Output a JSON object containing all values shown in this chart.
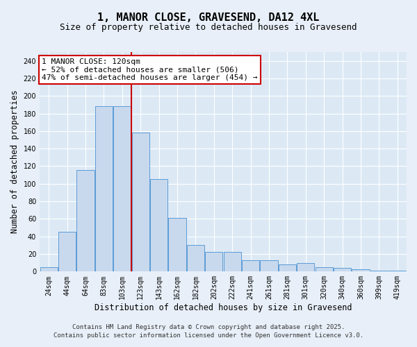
{
  "title": "1, MANOR CLOSE, GRAVESEND, DA12 4XL",
  "subtitle": "Size of property relative to detached houses in Gravesend",
  "xlabel": "Distribution of detached houses by size in Gravesend",
  "ylabel": "Number of detached properties",
  "categories": [
    "24sqm",
    "44sqm",
    "64sqm",
    "83sqm",
    "103sqm",
    "123sqm",
    "143sqm",
    "162sqm",
    "182sqm",
    "202sqm",
    "222sqm",
    "241sqm",
    "261sqm",
    "281sqm",
    "301sqm",
    "320sqm",
    "340sqm",
    "360sqm",
    "399sqm",
    "419sqm"
  ],
  "values": [
    5,
    45,
    116,
    188,
    188,
    158,
    105,
    61,
    30,
    22,
    22,
    13,
    13,
    8,
    10,
    5,
    4,
    3,
    1,
    1
  ],
  "bar_color": "#c8d9ee",
  "bar_edge_color": "#5b9bd5",
  "bar_width": 0.95,
  "vline_x": 4.5,
  "vline_color": "#cc0000",
  "annotation_line1": "1 MANOR CLOSE: 120sqm",
  "annotation_line2": "← 52% of detached houses are smaller (506)",
  "annotation_line3": "47% of semi-detached houses are larger (454) →",
  "annotation_box_color": "#cc0000",
  "ylim": [
    0,
    250
  ],
  "yticks": [
    0,
    20,
    40,
    60,
    80,
    100,
    120,
    140,
    160,
    180,
    200,
    220,
    240
  ],
  "grid_color": "#ffffff",
  "bg_color": "#dce9f5",
  "fig_bg_color": "#e8eff8",
  "footer_line1": "Contains HM Land Registry data © Crown copyright and database right 2025.",
  "footer_line2": "Contains public sector information licensed under the Open Government Licence v3.0.",
  "title_fontsize": 11,
  "subtitle_fontsize": 9,
  "axis_label_fontsize": 8.5,
  "tick_fontsize": 7,
  "annotation_fontsize": 8,
  "footer_fontsize": 6.5
}
